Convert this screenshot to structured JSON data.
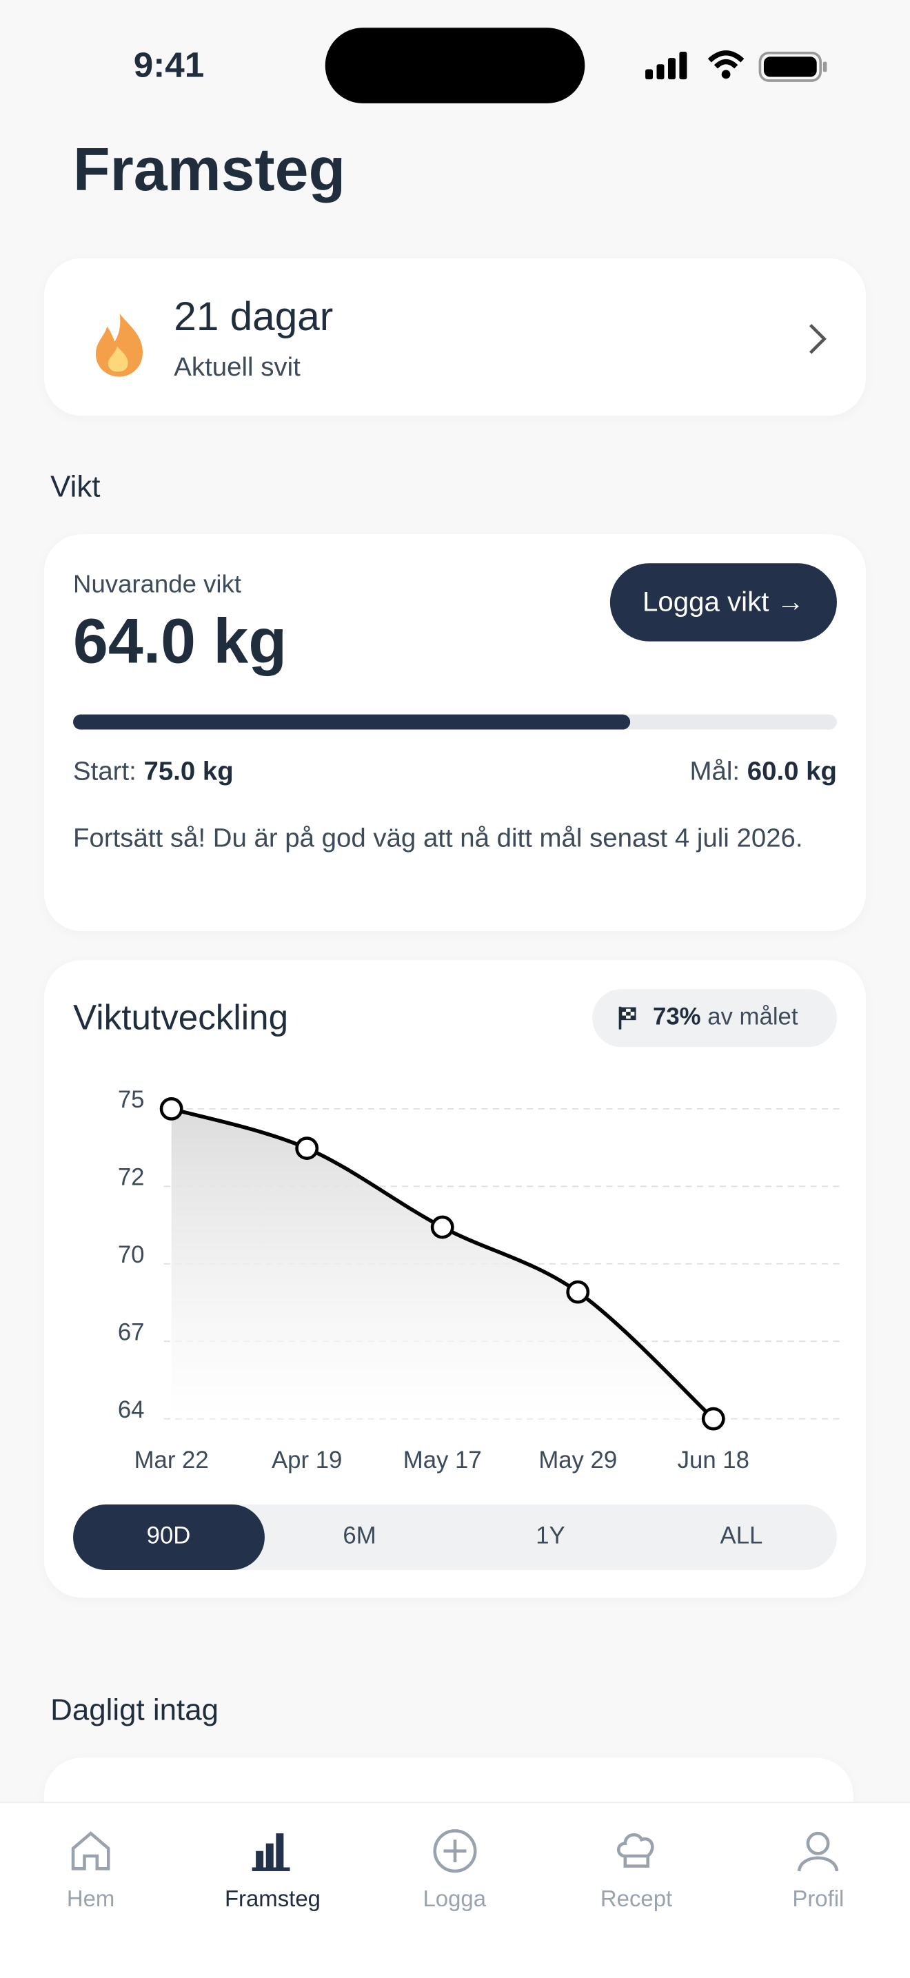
{
  "status_bar": {
    "time": "9:41"
  },
  "header": {
    "title": "Framsteg"
  },
  "streak": {
    "days": "21 dagar",
    "label": "Aktuell svit"
  },
  "weight": {
    "section": "Vikt",
    "current_label": "Nuvarande vikt",
    "current": "64.0 kg",
    "button": "Logga vikt →",
    "progress": {
      "value": 73,
      "label": "73%",
      "text": "av målet"
    },
    "start_label": "Start:",
    "start": "75.0 kg",
    "goal_label": "Mål:",
    "goal": "60.0 kg",
    "message": "Fortsätt så! Du är på god väg att nå ditt mål senast 4 juli 2026."
  },
  "chart_data": {
    "type": "line",
    "title": "Viktutveckling",
    "categories": [
      "Mar 22",
      "Apr 19",
      "May 17",
      "May 29",
      "Jun 18"
    ],
    "values": [
      75,
      73.6,
      70.8,
      68.5,
      64
    ],
    "color": "#000000",
    "ylim": [
      64,
      75
    ],
    "yticks": [
      {
        "value": 64,
        "label": "64"
      },
      {
        "value": 66.75,
        "label": "67"
      },
      {
        "value": 69.5,
        "label": "70"
      },
      {
        "value": 72.25,
        "label": "72"
      },
      {
        "value": 75,
        "label": "75"
      }
    ],
    "grid": true
  },
  "ranges": [
    "90D",
    "6M",
    "1Y",
    "ALL"
  ],
  "intake": {
    "section": "Dagligt intag"
  },
  "nav": [
    "Hem",
    "Framsteg",
    "Logga",
    "Recept",
    "Profil"
  ]
}
